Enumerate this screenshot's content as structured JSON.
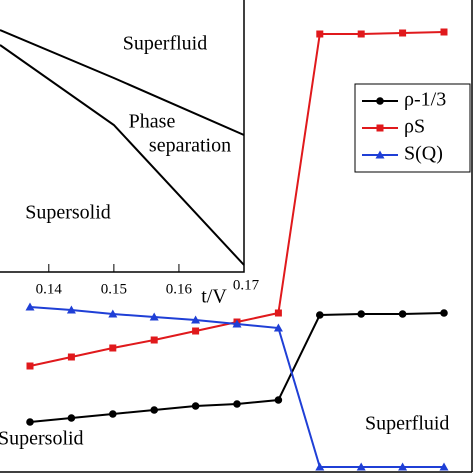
{
  "chart_data": [
    {
      "type": "line",
      "categories": [
        null,
        null,
        null,
        null,
        null,
        null,
        null,
        null,
        null,
        null,
        null
      ],
      "ylim": [
        0,
        474
      ],
      "legend": "upper right",
      "annotations": [
        "Superfluid",
        "Supersolid"
      ],
      "series": [
        {
          "name": "ρ-1/3",
          "color": "#000000",
          "marker": "circle",
          "values": [
            52,
            56,
            60,
            64,
            68,
            70,
            74,
            159,
            160,
            160,
            161
          ]
        },
        {
          "name": "ρS",
          "color": "#e0191c",
          "marker": "square",
          "values": [
            108,
            117,
            126,
            134,
            143,
            152,
            161,
            440,
            440,
            441,
            442
          ]
        },
        {
          "name": "S(Q)",
          "color": "#1f3fd6",
          "marker": "triangle",
          "values": [
            167,
            164,
            160,
            157,
            154,
            150,
            146,
            7,
            7,
            7,
            7
          ]
        }
      ]
    },
    {
      "type": "line",
      "xlabel": "t/V",
      "xlim": [
        0.1325,
        0.17
      ],
      "ylim": [
        0,
        272
      ],
      "xticks": [
        0.14,
        0.15,
        0.16,
        0.17
      ],
      "annotations": [
        "Superfluid",
        "Phase",
        "separation",
        "Supersolid"
      ],
      "series": [
        {
          "color": "#000000",
          "x": [
            0.1325,
            0.15,
            0.17
          ],
          "values": [
            242,
            194,
            137
          ]
        },
        {
          "color": "#000000",
          "x": [
            0.1325,
            0.15,
            0.17
          ],
          "values": [
            227,
            147,
            7
          ]
        }
      ]
    }
  ]
}
